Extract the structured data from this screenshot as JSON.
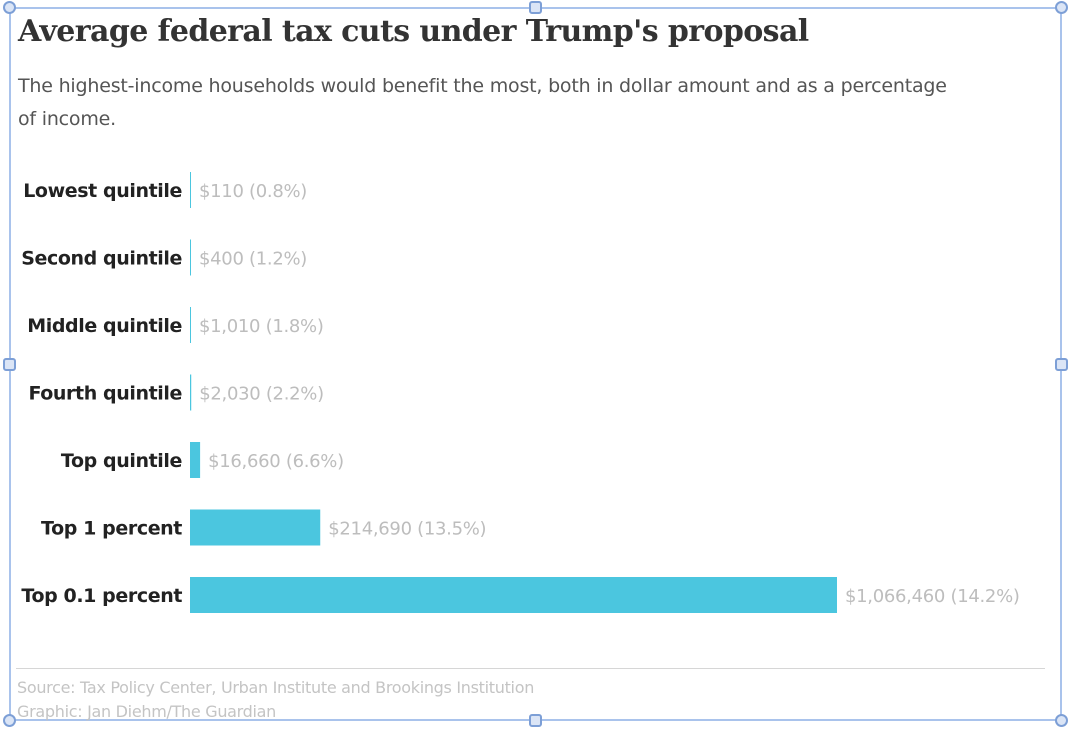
{
  "header": {
    "title": "Average federal tax cuts under Trump's proposal",
    "subtitle": "The highest-income households would benefit the most, both in dollar amount and as a percentage of income."
  },
  "footer": {
    "source": "Source: Tax Policy Center, Urban Institute and Brookings Institution",
    "credit": "Graphic: Jan Diehm/The Guardian"
  },
  "colors": {
    "bar": "#4bc6df",
    "selection": "#7d9fd6"
  },
  "chart_data": {
    "type": "bar",
    "orientation": "horizontal",
    "title": "Average federal tax cuts under Trump's proposal",
    "subtitle": "The highest-income households would benefit the most, both in dollar amount and as a percentage of income.",
    "xlabel": "",
    "ylabel": "",
    "grid": false,
    "categories": [
      "Lowest quintile",
      "Second quintile",
      "Middle quintile",
      "Fourth quintile",
      "Top quintile",
      "Top 1 percent",
      "Top 0.1 percent"
    ],
    "values": [
      110,
      400,
      1010,
      2030,
      16660,
      214690,
      1066460
    ],
    "percent_of_income": [
      0.8,
      1.2,
      1.8,
      2.2,
      6.6,
      13.5,
      14.2
    ],
    "data_labels": [
      "$110 (0.8%)",
      "$400 (1.2%)",
      "$1,010 (1.8%)",
      "$2,030 (2.2%)",
      "$16,660 (6.6%)",
      "$214,690 (13.5%)",
      "$1,066,460 (14.2%)"
    ],
    "xlim": [
      0,
      1066460
    ]
  }
}
